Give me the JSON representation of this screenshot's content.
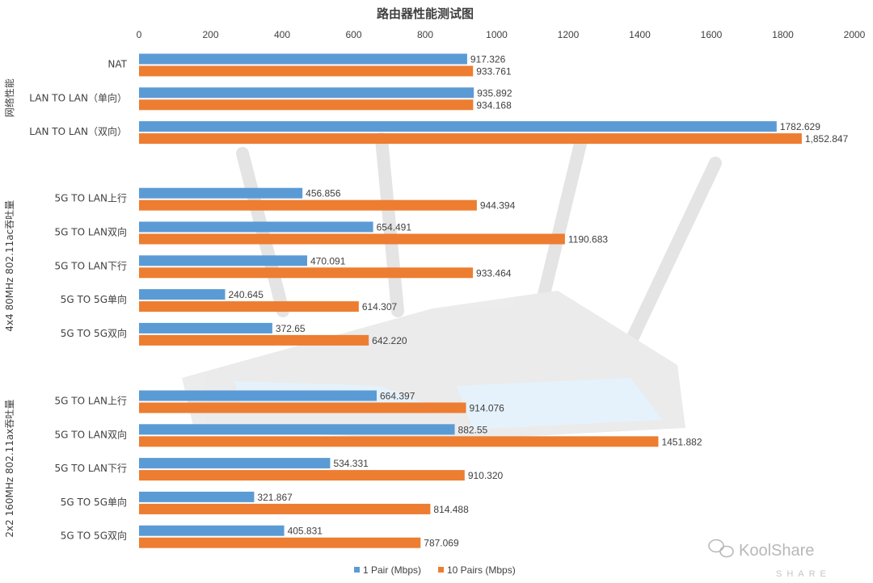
{
  "chart_data": {
    "type": "bar",
    "orientation": "horizontal",
    "title": "路由器性能测试图",
    "xlim": [
      0,
      2000
    ],
    "x_ticks": [
      "0",
      "200",
      "400",
      "600",
      "800",
      "1000",
      "1200",
      "1400",
      "1600",
      "1800",
      "2000"
    ],
    "grid": false,
    "legend_position": "bottom",
    "colors": {
      "series1": "#5b9bd5",
      "series2": "#ed7d31"
    },
    "series": [
      {
        "name": "1 Pair (Mbps)"
      },
      {
        "name": "10  Pairs  (Mbps)"
      }
    ],
    "groups": [
      {
        "label": "网络性能",
        "categories": [
          {
            "label": "NAT",
            "values": [
              917.326,
              933.761
            ],
            "value_labels": [
              "917.326",
              "933.761"
            ]
          },
          {
            "label": "LAN TO LAN（单向）",
            "values": [
              935.892,
              934.168
            ],
            "value_labels": [
              "935.892",
              "934.168"
            ]
          },
          {
            "label": "LAN TO LAN（双向）",
            "values": [
              1782.629,
              1852.847
            ],
            "value_labels": [
              "1782.629",
              "1,852.847"
            ]
          }
        ]
      },
      {
        "label": "4x4 80MHz 802.11ac吞吐量",
        "categories": [
          {
            "label": "5G TO LAN上行",
            "values": [
              456.856,
              944.394
            ],
            "value_labels": [
              "456.856",
              "944.394"
            ]
          },
          {
            "label": "5G TO LAN双向",
            "values": [
              654.491,
              1190.683
            ],
            "value_labels": [
              "654.491",
              "1190.683"
            ]
          },
          {
            "label": "5G TO LAN下行",
            "values": [
              470.091,
              933.464
            ],
            "value_labels": [
              "470.091",
              "933.464"
            ]
          },
          {
            "label": "5G TO 5G单向",
            "values": [
              240.645,
              614.307
            ],
            "value_labels": [
              "240.645",
              "614.307"
            ]
          },
          {
            "label": "5G TO 5G双向",
            "values": [
              372.65,
              642.22
            ],
            "value_labels": [
              "372.65",
              "642.220"
            ]
          }
        ]
      },
      {
        "label": "2x2 160MHz 802.11ax吞吐量",
        "categories": [
          {
            "label": "5G TO LAN上行",
            "values": [
              664.397,
              914.076
            ],
            "value_labels": [
              "664.397",
              "914.076"
            ]
          },
          {
            "label": "5G TO LAN双向",
            "values": [
              882.55,
              1451.882
            ],
            "value_labels": [
              "882.55",
              "1451.882"
            ]
          },
          {
            "label": "5G TO LAN下行",
            "values": [
              534.331,
              910.32
            ],
            "value_labels": [
              "534.331",
              "910.320"
            ]
          },
          {
            "label": "5G TO 5G单向",
            "values": [
              321.867,
              814.488
            ],
            "value_labels": [
              "321.867",
              "814.488"
            ]
          },
          {
            "label": "5G TO 5G双向",
            "values": [
              405.831,
              787.069
            ],
            "value_labels": [
              "405.831",
              "787.069"
            ]
          }
        ]
      }
    ]
  },
  "watermark": {
    "text": "KoolShare",
    "sub": "SHARE",
    "icon": "wechat-icon"
  }
}
